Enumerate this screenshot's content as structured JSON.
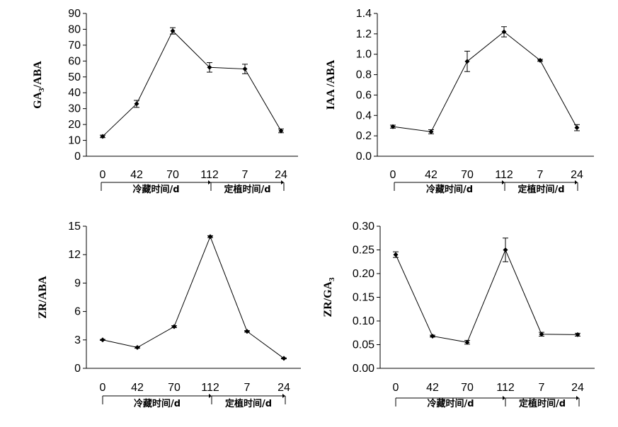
{
  "chart_data": [
    {
      "type": "line",
      "title": "",
      "ylabel_main": "GA",
      "ylabel_sub": "3",
      "ylabel_rest": "/ABA",
      "ylim": [
        0,
        90
      ],
      "yticks": [
        "0",
        "10",
        "20",
        "30",
        "40",
        "50",
        "60",
        "70",
        "80",
        "90"
      ],
      "categories": [
        "0",
        "42",
        "70",
        "112",
        "7",
        "24"
      ],
      "values": [
        12.5,
        33,
        79,
        56,
        55,
        16
      ],
      "errors": [
        0.8,
        2.2,
        2,
        3,
        3,
        1.2
      ],
      "groups": [
        {
          "label": "冷藏时间/d"
        },
        {
          "label": "定植时间/d"
        }
      ]
    },
    {
      "type": "line",
      "title": "",
      "ylabel_main": "IAA /ABA",
      "ylabel_sub": "",
      "ylabel_rest": "",
      "ylim": [
        0,
        1.4
      ],
      "yticks": [
        "0.0",
        "0.2",
        "0.4",
        "0.6",
        "0.8",
        "1.0",
        "1.2",
        "1.4"
      ],
      "categories": [
        "0",
        "42",
        "70",
        "112",
        "7",
        "24"
      ],
      "values": [
        0.29,
        0.24,
        0.93,
        1.22,
        0.94,
        0.28
      ],
      "errors": [
        0.015,
        0.02,
        0.1,
        0.05,
        0.01,
        0.03
      ],
      "groups": [
        {
          "label": "冷藏时间/d"
        },
        {
          "label": "定植时间/d"
        }
      ]
    },
    {
      "type": "line",
      "title": "",
      "ylabel_main": "ZR/ABA",
      "ylabel_sub": "",
      "ylabel_rest": "",
      "ylim": [
        0,
        15
      ],
      "yticks": [
        "0",
        "3",
        "6",
        "9",
        "12",
        "15"
      ],
      "categories": [
        "0",
        "42",
        "70",
        "112",
        "7",
        "24"
      ],
      "values": [
        3.0,
        2.2,
        4.4,
        13.9,
        3.9,
        1.05
      ],
      "errors": [
        0.05,
        0.08,
        0.1,
        0.1,
        0.08,
        0.05
      ],
      "groups": [
        {
          "label": "冷藏时间/d"
        },
        {
          "label": "定植时间/d"
        }
      ]
    },
    {
      "type": "line",
      "title": "",
      "ylabel_main": "ZR/GA",
      "ylabel_sub": "3",
      "ylabel_rest": "",
      "ylim": [
        0,
        0.3
      ],
      "yticks": [
        "0.00",
        "0.05",
        "0.10",
        "0.15",
        "0.20",
        "0.25",
        "0.30"
      ],
      "categories": [
        "0",
        "42",
        "70",
        "112",
        "7",
        "24"
      ],
      "values": [
        0.24,
        0.068,
        0.055,
        0.25,
        0.072,
        0.071
      ],
      "errors": [
        0.006,
        0.002,
        0.004,
        0.025,
        0.004,
        0.003
      ],
      "groups": [
        {
          "label": "冷藏时间/d"
        },
        {
          "label": "定植时间/d"
        }
      ]
    }
  ]
}
